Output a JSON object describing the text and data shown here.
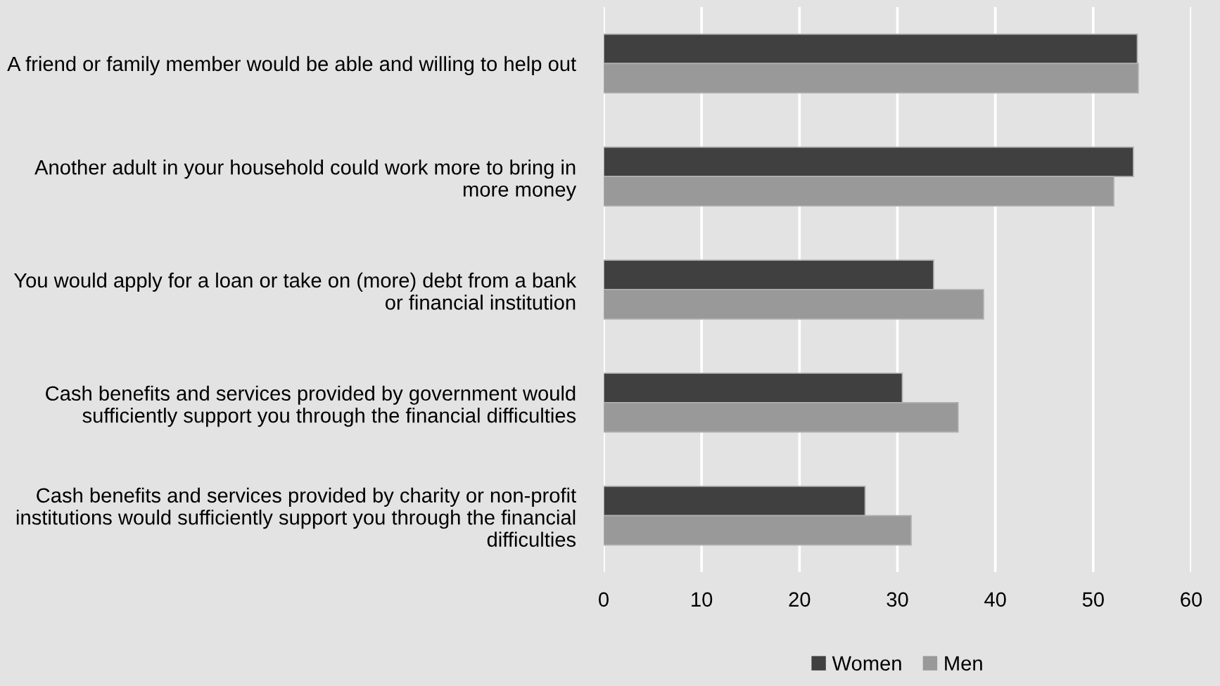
{
  "chart_data": {
    "type": "bar",
    "orientation": "horizontal",
    "categories": [
      "A friend or family member would be able and willing to help out",
      "Another adult in your household could work more to bring in\nmore money",
      "You would apply for a loan or take on (more) debt from a bank\nor financial institution",
      "Cash benefits and services provided by government would\nsufficiently support you through the financial difficulties",
      "Cash benefits and services provided by charity or non-profit\ninstitutions would sufficiently support you through the financial\ndifficulties"
    ],
    "series": [
      {
        "name": "Women",
        "color": "#404040",
        "values": [
          54.5,
          54.1,
          33.7,
          30.5,
          26.7
        ]
      },
      {
        "name": "Men",
        "color": "#999999",
        "values": [
          54.6,
          52.1,
          38.8,
          36.2,
          31.4
        ]
      }
    ],
    "xlim": [
      0,
      60
    ],
    "xticks": [
      0,
      10,
      20,
      30,
      40,
      50,
      60
    ],
    "grid": "x",
    "legend": "bottom"
  }
}
